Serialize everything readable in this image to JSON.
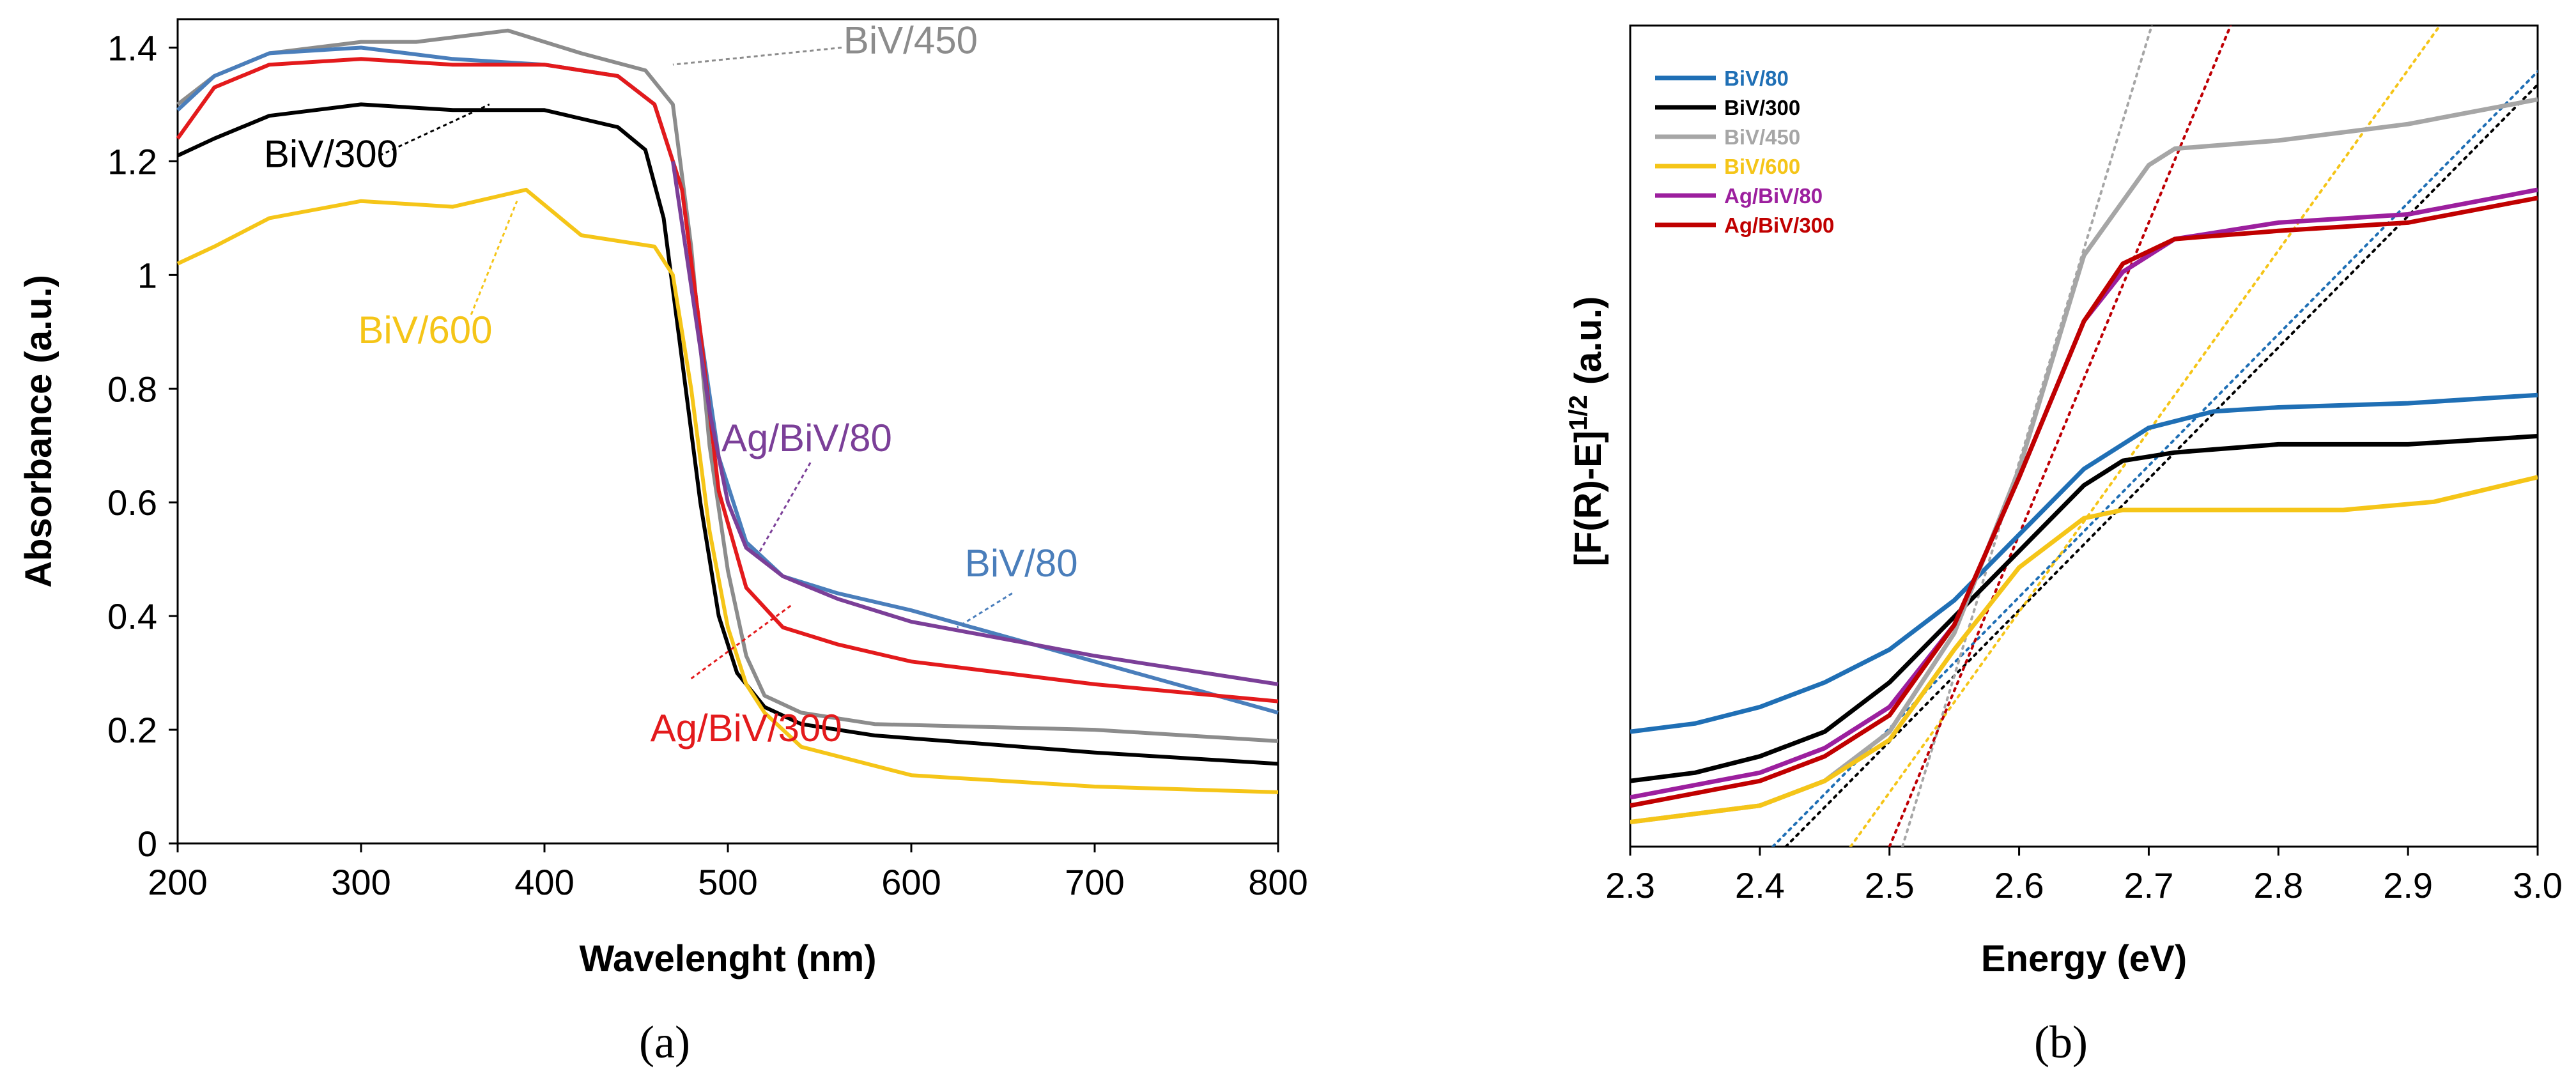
{
  "chart_data": [
    {
      "type": "line",
      "panel": "(a)",
      "xlabel": "Wavelenght (nm)",
      "ylabel": "Absorbance (a.u.)",
      "xlim": [
        200,
        800
      ],
      "ylim": [
        0,
        1.45
      ],
      "xticks": [
        200,
        300,
        400,
        500,
        600,
        700,
        800
      ],
      "xtick_labels": [
        "200",
        "300",
        "400",
        "500",
        "600",
        "700",
        "800"
      ],
      "yticks": [
        0,
        0.2,
        0.4,
        0.6,
        0.8,
        1.0,
        1.2,
        1.4
      ],
      "ytick_labels": [
        "0",
        "0.2",
        "0.4",
        "0.6",
        "0.8",
        "1",
        "1.2",
        "1.4"
      ],
      "series": [
        {
          "name": "BiV/450",
          "color": "#8c8c8c",
          "x": [
            200,
            220,
            250,
            300,
            330,
            380,
            420,
            455,
            470,
            480,
            490,
            500,
            510,
            520,
            540,
            580,
            700,
            800
          ],
          "y": [
            1.3,
            1.35,
            1.39,
            1.41,
            1.41,
            1.43,
            1.39,
            1.36,
            1.3,
            1.05,
            0.7,
            0.48,
            0.33,
            0.26,
            0.23,
            0.21,
            0.2,
            0.18
          ]
        },
        {
          "name": "BiV/80",
          "color": "#4a7ebb",
          "x": [
            200,
            220,
            250,
            300,
            350,
            400,
            440,
            460,
            475,
            485,
            495,
            510,
            530,
            560,
            600,
            700,
            800
          ],
          "y": [
            1.29,
            1.35,
            1.39,
            1.4,
            1.38,
            1.37,
            1.35,
            1.3,
            1.15,
            0.9,
            0.68,
            0.53,
            0.47,
            0.44,
            0.41,
            0.32,
            0.23
          ]
        },
        {
          "name": "Ag/BiV/300",
          "color": "#e31a1c",
          "x": [
            200,
            220,
            250,
            300,
            350,
            400,
            440,
            460,
            475,
            485,
            495,
            510,
            530,
            560,
            600,
            700,
            800
          ],
          "y": [
            1.24,
            1.33,
            1.37,
            1.38,
            1.37,
            1.37,
            1.35,
            1.3,
            1.15,
            0.9,
            0.62,
            0.45,
            0.38,
            0.35,
            0.32,
            0.28,
            0.25
          ]
        },
        {
          "name": "Ag/BiV/80",
          "color": "#7b3f98",
          "x": [
            470,
            480,
            490,
            500,
            510,
            530,
            560,
            600,
            700,
            800
          ],
          "y": [
            1.2,
            0.98,
            0.76,
            0.6,
            0.52,
            0.47,
            0.43,
            0.39,
            0.33,
            0.28
          ]
        },
        {
          "name": "BiV/300",
          "color": "#000000",
          "x": [
            200,
            220,
            250,
            300,
            350,
            400,
            440,
            455,
            465,
            475,
            485,
            495,
            505,
            520,
            540,
            580,
            700,
            800
          ],
          "y": [
            1.21,
            1.24,
            1.28,
            1.3,
            1.29,
            1.29,
            1.26,
            1.22,
            1.1,
            0.85,
            0.6,
            0.4,
            0.3,
            0.24,
            0.21,
            0.19,
            0.16,
            0.14
          ]
        },
        {
          "name": "BiV/600",
          "color": "#f5c518",
          "x": [
            200,
            220,
            250,
            300,
            350,
            390,
            420,
            460,
            470,
            480,
            490,
            500,
            510,
            520,
            540,
            600,
            700,
            800
          ],
          "y": [
            1.02,
            1.05,
            1.1,
            1.13,
            1.12,
            1.15,
            1.07,
            1.05,
            1.0,
            0.8,
            0.55,
            0.38,
            0.28,
            0.23,
            0.17,
            0.12,
            0.1,
            0.09
          ]
        }
      ],
      "annotations": [
        {
          "text": "BiV/450",
          "color": "#8c8c8c"
        },
        {
          "text": "BiV/300",
          "color": "#000000"
        },
        {
          "text": "BiV/600",
          "color": "#f5c518"
        },
        {
          "text": "Ag/BiV/80",
          "color": "#7b3f98"
        },
        {
          "text": "BiV/80",
          "color": "#4a7ebb"
        },
        {
          "text": "Ag/BiV/300",
          "color": "#e31a1c"
        }
      ]
    },
    {
      "type": "line",
      "panel": "(b)",
      "xlabel": "Energy (eV)",
      "ylabel": "[F(R)-E]1/2 (a.u.)",
      "xlim": [
        2.3,
        3.0
      ],
      "ylim": [
        0,
        1.0
      ],
      "xticks": [
        2.3,
        2.4,
        2.5,
        2.6,
        2.7,
        2.8,
        2.9,
        3.0
      ],
      "xtick_labels": [
        "2.3",
        "2.4",
        "2.5",
        "2.6",
        "2.7",
        "2.8",
        "2.9",
        "3.0"
      ],
      "legend": [
        {
          "name": "BiV/80",
          "color": "#1f6fb5"
        },
        {
          "name": "BiV/300",
          "color": "#000000"
        },
        {
          "name": "BiV/450",
          "color": "#a6a6a6"
        },
        {
          "name": "BiV/600",
          "color": "#f5c518"
        },
        {
          "name": "Ag/BiV/80",
          "color": "#9c1f9e"
        },
        {
          "name": "Ag/BiV/300",
          "color": "#c00000"
        }
      ],
      "series": [
        {
          "name": "BiV/80",
          "color": "#1f6fb5",
          "x": [
            2.3,
            2.35,
            2.4,
            2.45,
            2.5,
            2.55,
            2.6,
            2.65,
            2.7,
            2.75,
            2.8,
            2.9,
            3.0
          ],
          "y": [
            0.14,
            0.15,
            0.17,
            0.2,
            0.24,
            0.3,
            0.38,
            0.46,
            0.51,
            0.53,
            0.535,
            0.54,
            0.55
          ]
        },
        {
          "name": "BiV/300",
          "color": "#000000",
          "x": [
            2.3,
            2.35,
            2.4,
            2.45,
            2.5,
            2.55,
            2.6,
            2.65,
            2.68,
            2.72,
            2.8,
            2.9,
            3.0
          ],
          "y": [
            0.08,
            0.09,
            0.11,
            0.14,
            0.2,
            0.28,
            0.36,
            0.44,
            0.47,
            0.48,
            0.49,
            0.49,
            0.5
          ]
        },
        {
          "name": "BiV/450",
          "color": "#a6a6a6",
          "x": [
            2.3,
            2.4,
            2.45,
            2.5,
            2.55,
            2.6,
            2.65,
            2.7,
            2.72,
            2.8,
            2.9,
            3.0
          ],
          "y": [
            0.03,
            0.05,
            0.08,
            0.14,
            0.26,
            0.46,
            0.72,
            0.83,
            0.85,
            0.86,
            0.88,
            0.91
          ]
        },
        {
          "name": "BiV/600",
          "color": "#f5c518",
          "x": [
            2.3,
            2.4,
            2.45,
            2.5,
            2.55,
            2.6,
            2.65,
            2.68,
            2.75,
            2.85,
            2.92,
            3.0
          ],
          "y": [
            0.03,
            0.05,
            0.08,
            0.13,
            0.24,
            0.34,
            0.4,
            0.41,
            0.41,
            0.41,
            0.42,
            0.45
          ]
        },
        {
          "name": "Ag/BiV/80",
          "color": "#9c1f9e",
          "x": [
            2.3,
            2.4,
            2.45,
            2.5,
            2.55,
            2.6,
            2.65,
            2.68,
            2.72,
            2.8,
            2.9,
            3.0
          ],
          "y": [
            0.06,
            0.09,
            0.12,
            0.17,
            0.27,
            0.45,
            0.64,
            0.7,
            0.74,
            0.76,
            0.77,
            0.8
          ]
        },
        {
          "name": "Ag/BiV/300",
          "color": "#c00000",
          "x": [
            2.3,
            2.4,
            2.45,
            2.5,
            2.55,
            2.6,
            2.65,
            2.68,
            2.72,
            2.8,
            2.9,
            3.0
          ],
          "y": [
            0.05,
            0.08,
            0.11,
            0.16,
            0.27,
            0.45,
            0.64,
            0.71,
            0.74,
            0.75,
            0.76,
            0.79
          ]
        }
      ],
      "tangent_lines": [
        {
          "name": "BiV/80",
          "color": "#1f6fb5",
          "x_intercept": 2.41
        },
        {
          "name": "BiV/300",
          "color": "#000000",
          "x_intercept": 2.42
        },
        {
          "name": "BiV/450",
          "color": "#a6a6a6",
          "x_intercept": 2.51
        },
        {
          "name": "BiV/600",
          "color": "#f5c518",
          "x_intercept": 2.47
        },
        {
          "name": "Ag/BiV/80",
          "color": "#9c1f9e",
          "x_intercept": 2.5
        },
        {
          "name": "Ag/BiV/300",
          "color": "#c00000",
          "x_intercept": 2.5
        }
      ]
    }
  ],
  "panel_labels": {
    "a": "(a)",
    "b": "(b)"
  },
  "axis_b_ylabel": {
    "main": "[F(R)-E]",
    "sup": "1/2",
    "unit": " (a.u.)"
  }
}
